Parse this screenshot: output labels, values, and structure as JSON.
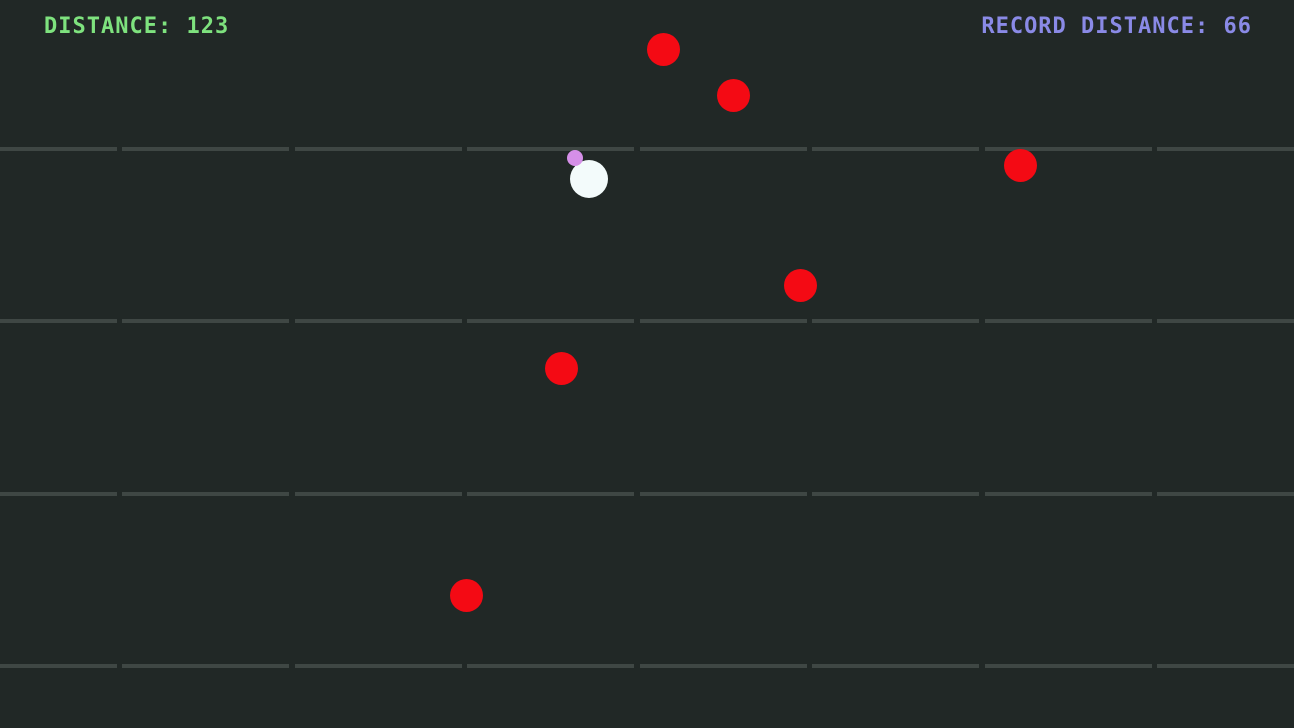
{
  "hud": {
    "distance_label": "DISTANCE: 123",
    "record_label": "RECORD DISTANCE: 66"
  },
  "colors": {
    "background": "#212826",
    "distance_text": "#7ee27e",
    "record_text": "#8a8ae6",
    "enemy": "#f40a14",
    "player": "#f3fbfb",
    "companion": "#d58fe8",
    "lane_line": "#3f4744"
  }
}
